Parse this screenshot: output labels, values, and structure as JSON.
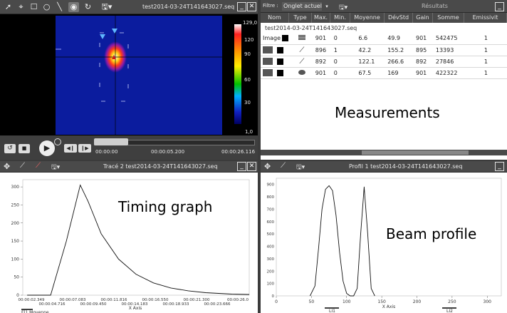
{
  "player": {
    "file_title": "test2014-03-24T141643027.seq",
    "scale_max": "129,0",
    "scale_min": "1,0",
    "scale_ticks": [
      "120",
      "90",
      "60",
      "30"
    ],
    "time_start": "00:00:00",
    "time_current": "00:00:05.200",
    "time_end": "00:00:26.116"
  },
  "results": {
    "filter_label": "Filtre :",
    "filter_value": "Onglet actuel",
    "panel_title": "Résultats",
    "columns": [
      "Nom",
      "Type",
      "Max.",
      "Min.",
      "Moyenne",
      "DévStd",
      "Gain",
      "Somme",
      "Emissivit"
    ],
    "group_title": "test2014-03-24T141643027.seq",
    "rows": [
      {
        "name": "Image",
        "max": "901",
        "min": "0",
        "moyenne": "6.6",
        "devstd": "49.9",
        "gain": "901",
        "somme": "542475",
        "emis": "1"
      },
      {
        "name": "",
        "max": "896",
        "min": "1",
        "moyenne": "42.2",
        "devstd": "155.2",
        "gain": "895",
        "somme": "13393",
        "emis": "1"
      },
      {
        "name": "",
        "max": "892",
        "min": "0",
        "moyenne": "122.1",
        "devstd": "266.6",
        "gain": "892",
        "somme": "27846",
        "emis": "1"
      },
      {
        "name": "",
        "max": "901",
        "min": "0",
        "moyenne": "67.5",
        "devstd": "169",
        "gain": "901",
        "somme": "422322",
        "emis": "1"
      }
    ],
    "overlay_label": "Measurements"
  },
  "trace": {
    "title": "Tracé 2 test2014-03-24T141643027.seq",
    "overlay_label": "Timing graph",
    "y_ticks": [
      "300",
      "250",
      "200",
      "150",
      "100",
      "50",
      "0"
    ],
    "x_ticks_top": [
      "00:00:02.349",
      "00:00:07.083",
      "00:00:11.816",
      "00:00:16.550",
      "00:00:21.300",
      "00:00:26.0"
    ],
    "x_ticks_bottom": [
      "00:00:04.716",
      "00:00:09.450",
      "00:00:14.183",
      "00:00:18.933",
      "00:00:23.666"
    ],
    "x_axis_label": "X Axis",
    "legend": "El1.Moyenne",
    "chart_data": {
      "type": "line",
      "xlabel": "X Axis",
      "ylim": [
        0,
        320
      ],
      "x_unit": "seconds",
      "x": [
        0.5,
        3.2,
        5.0,
        6.6,
        7.5,
        9.0,
        11.0,
        13.0,
        15.0,
        17.0,
        19.0,
        21.0,
        24.0,
        26.0
      ],
      "series": [
        {
          "name": "El1.Moyenne",
          "values": [
            0,
            0,
            150,
            305,
            260,
            170,
            100,
            58,
            34,
            20,
            12,
            7,
            3,
            2
          ]
        }
      ]
    }
  },
  "profile": {
    "title": "Profil 1 test2014-03-24T141643027.seq",
    "overlay_label": "Beam profile",
    "y_ticks": [
      "900",
      "800",
      "700",
      "600",
      "500",
      "400",
      "300",
      "200",
      "100",
      "0"
    ],
    "x_ticks": [
      "0",
      "50",
      "100",
      "150",
      "200",
      "250",
      "300"
    ],
    "x_axis_label": "X Axis",
    "legend": [
      "LI1",
      "LI2"
    ],
    "chart_data": {
      "type": "line",
      "xlabel": "X Axis",
      "ylim": [
        0,
        950
      ],
      "xlim": [
        0,
        320
      ],
      "x": [
        48,
        55,
        60,
        65,
        70,
        75,
        80,
        85,
        90,
        95,
        100,
        105,
        110,
        115,
        120,
        125,
        130,
        135,
        140
      ],
      "series": [
        {
          "name": "LI1",
          "values": [
            0,
            80,
            380,
            700,
            860,
            890,
            850,
            650,
            350,
            120,
            20,
            0,
            0,
            60,
            500,
            880,
            500,
            60,
            0
          ]
        }
      ]
    }
  }
}
